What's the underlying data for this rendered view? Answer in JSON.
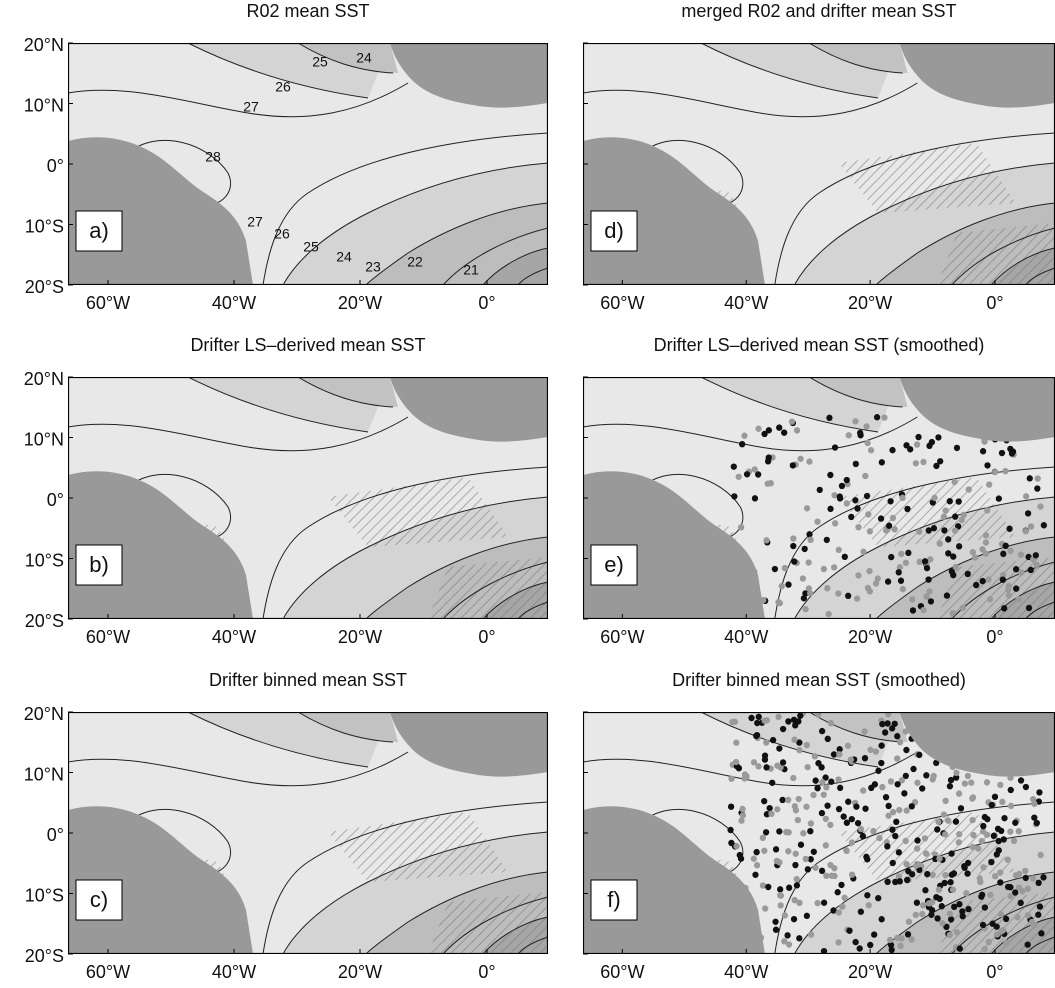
{
  "panels": [
    {
      "title": "R02 mean SST",
      "label": "a)",
      "contour_labels": [
        "25",
        "24",
        "26",
        "27",
        "28",
        "27",
        "26",
        "25",
        "24",
        "23",
        "22",
        "21"
      ]
    },
    {
      "title": "Drifter LS–derived mean SST",
      "label": "b)"
    },
    {
      "title": "Drifter binned mean SST",
      "label": "c)"
    },
    {
      "title": "merged R02 and drifter mean SST",
      "label": "d)"
    },
    {
      "title": "Drifter LS–derived mean SST (smoothed)",
      "label": "e)"
    },
    {
      "title": "Drifter binned mean SST (smoothed)",
      "label": "f)"
    }
  ],
  "y_ticks": [
    "20°N",
    "10°N",
    "0°",
    "10°S",
    "20°S"
  ],
  "x_ticks": [
    "60°W",
    "40°W",
    "20°W",
    "0°"
  ]
}
